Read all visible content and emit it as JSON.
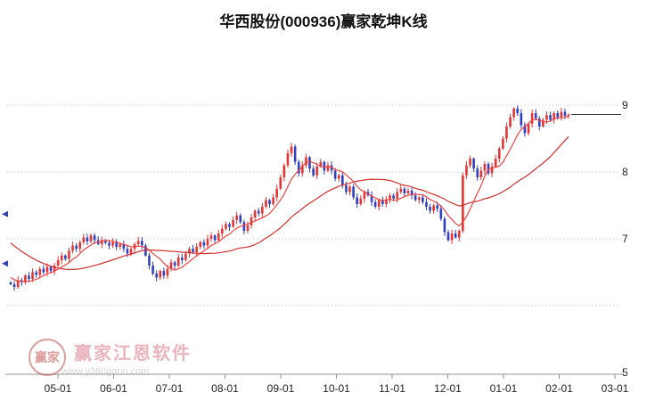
{
  "title": "华西股份(000936)赢家乾坤K线",
  "watermark": {
    "brand": "赢家江恩软件",
    "url": "www.y360gann.com",
    "logo_text": "赢家"
  },
  "chart_data": {
    "type": "candlestick",
    "title": "华西股份(000936)赢家乾坤K线",
    "xlabel": "",
    "ylabel": "",
    "ylim": [
      4.85,
      10.0
    ],
    "grid": "horizontal-dotted",
    "x_tick_labels": [
      "05-01",
      "06-01",
      "07-01",
      "08-01",
      "09-01",
      "10-01",
      "11-01",
      "12-01",
      "01-01",
      "02-01",
      "03-01"
    ],
    "y_ticks": [
      {
        "label": "9",
        "value": 9
      },
      {
        "label": "8",
        "value": 8
      },
      {
        "label": "7",
        "value": 7
      },
      {
        "label": "5",
        "value": 5
      }
    ],
    "y_gridline_values": [
      9,
      8,
      7,
      6
    ],
    "first_open": 6.35,
    "closes": [
      6.32,
      6.28,
      6.38,
      6.35,
      6.45,
      6.4,
      6.5,
      6.46,
      6.55,
      6.5,
      6.58,
      6.52,
      6.6,
      6.68,
      6.75,
      6.7,
      6.82,
      6.9,
      6.85,
      6.95,
      7.02,
      6.96,
      7.05,
      6.98,
      6.92,
      6.98,
      6.94,
      6.9,
      6.95,
      6.88,
      6.92,
      6.85,
      6.78,
      6.85,
      6.92,
      6.97,
      6.9,
      6.75,
      6.6,
      6.48,
      6.42,
      6.52,
      6.45,
      6.55,
      6.65,
      6.6,
      6.72,
      6.68,
      6.78,
      6.85,
      6.8,
      6.88,
      6.95,
      6.9,
      7.0,
      7.05,
      6.98,
      7.08,
      7.15,
      7.22,
      7.18,
      7.28,
      7.35,
      7.25,
      7.12,
      7.2,
      7.32,
      7.42,
      7.38,
      7.48,
      7.58,
      7.52,
      7.62,
      7.75,
      7.92,
      8.1,
      8.28,
      8.38,
      8.15,
      7.98,
      8.1,
      8.22,
      8.05,
      7.95,
      8.08,
      8.15,
      8.02,
      8.1,
      8.02,
      7.9,
      7.95,
      7.8,
      7.7,
      7.78,
      7.62,
      7.52,
      7.6,
      7.7,
      7.65,
      7.55,
      7.48,
      7.58,
      7.52,
      7.58,
      7.65,
      7.6,
      7.7,
      7.75,
      7.68,
      7.72,
      7.65,
      7.58,
      7.62,
      7.55,
      7.48,
      7.42,
      7.5,
      7.45,
      7.3,
      7.1,
      6.98,
      7.08,
      7.02,
      7.12,
      7.95,
      8.1,
      8.2,
      8.05,
      7.92,
      8.02,
      8.12,
      7.98,
      8.08,
      8.2,
      8.35,
      8.5,
      8.68,
      8.82,
      8.95,
      8.88,
      8.7,
      8.58,
      8.72,
      8.88,
      8.8,
      8.68,
      8.78,
      8.85,
      8.78,
      8.88,
      8.82,
      8.9,
      8.84,
      8.86
    ],
    "ma_periods": [
      8,
      30
    ],
    "ma_prehistory": [
      7.7,
      7.65,
      7.6,
      7.55,
      7.5,
      7.45,
      7.4,
      7.35,
      7.3,
      7.25,
      7.2,
      7.15,
      7.1,
      7.05,
      7.0,
      6.95,
      6.9,
      6.85,
      6.8,
      6.75,
      6.7,
      6.65,
      6.6,
      6.55,
      6.5,
      6.45,
      6.42,
      6.4,
      6.38,
      6.35
    ],
    "last_price_line": 8.86,
    "left_edge_markers": [
      7.37,
      6.63
    ],
    "colors": {
      "up": "#e23535",
      "down": "#3240c0",
      "ma_fast": "#ef4343",
      "ma_slow": "#cf2f2f",
      "grid": "#cccccc",
      "axis": "#909090",
      "tick_text": "#222222",
      "price_line": "#3c3c3c"
    }
  }
}
